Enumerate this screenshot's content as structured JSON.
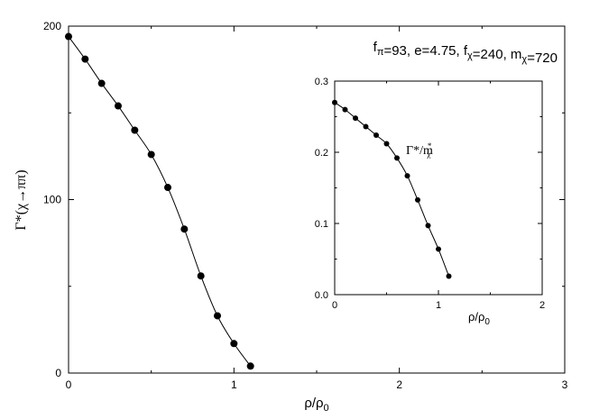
{
  "chart_data": [
    {
      "type": "line",
      "title": "",
      "annotation": {
        "parts": [
          {
            "t": "f"
          },
          {
            "t": "π",
            "sub": true
          },
          {
            "t": "=93, e=4.75, f"
          },
          {
            "t": "χ",
            "sub": true
          },
          {
            "t": "=240, m"
          },
          {
            "t": "χ",
            "sub": true
          },
          {
            "t": "=720"
          }
        ],
        "text": "fπ=93, e=4.75, fχ=240, mχ=720"
      },
      "xlabel": {
        "base": "ρ/ρ",
        "sub": "0"
      },
      "ylabel": "Γ*(χ→ππ)",
      "xlim": [
        0,
        3
      ],
      "ylim": [
        0,
        200
      ],
      "xticks": [
        0,
        1,
        2,
        3
      ],
      "yticks": [
        0,
        100,
        200
      ],
      "grid": false,
      "marker": "filled-circle",
      "x": [
        0,
        0.1,
        0.2,
        0.3,
        0.4,
        0.5,
        0.6,
        0.7,
        0.8,
        0.9,
        1.0,
        1.1
      ],
      "y": [
        194,
        181,
        167,
        154,
        140,
        126,
        107,
        83,
        56,
        33,
        17,
        4
      ]
    },
    {
      "type": "line",
      "inset": true,
      "title": "",
      "series_label": {
        "base": "Γ*/m",
        "sup": "*",
        "sub": "χ"
      },
      "xlabel": {
        "base": "ρ/ρ",
        "sub": "0"
      },
      "ylabel": "",
      "xlim": [
        0,
        2
      ],
      "ylim": [
        0,
        0.3
      ],
      "xticks": [
        0,
        1,
        2
      ],
      "yticks": [
        "0.0",
        "0.1",
        "0.2",
        "0.3"
      ],
      "grid": false,
      "marker": "filled-circle",
      "x": [
        0,
        0.1,
        0.2,
        0.3,
        0.4,
        0.5,
        0.6,
        0.7,
        0.8,
        0.9,
        1.0,
        1.1
      ],
      "y": [
        0.27,
        0.26,
        0.248,
        0.236,
        0.224,
        0.212,
        0.192,
        0.167,
        0.133,
        0.097,
        0.064,
        0.026
      ]
    }
  ]
}
